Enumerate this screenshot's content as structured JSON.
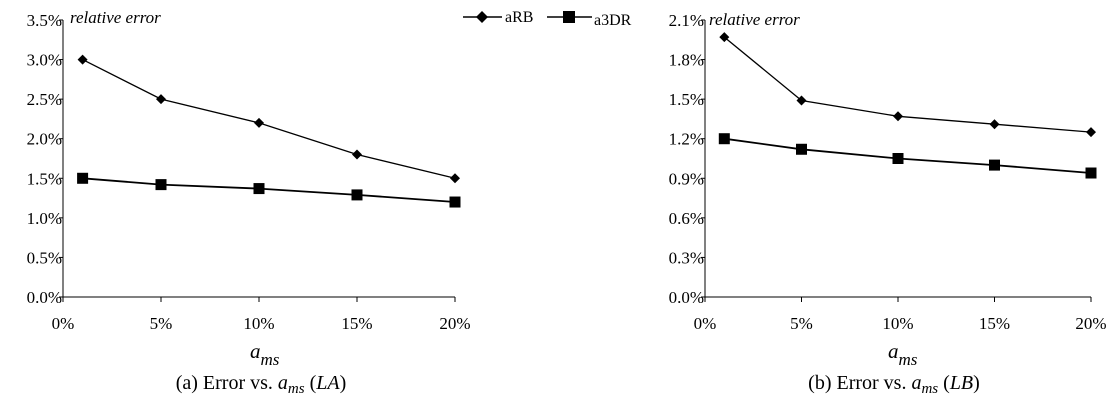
{
  "legend": [
    {
      "name": "aRB",
      "marker": "diamond"
    },
    {
      "name": "a3DR",
      "marker": "square"
    }
  ],
  "colors": {
    "line": "#000000",
    "background": "#ffffff"
  },
  "chart_data": [
    {
      "type": "line",
      "ylabel": "relative error",
      "xlabel": "a",
      "xlabel_sub": "ms",
      "caption": {
        "prefix": "(a) Error vs. ",
        "var": "a",
        "sub": "ms",
        "open": " (",
        "tag": "LA",
        "close": ")"
      },
      "x_ticks": [
        "0%",
        "5%",
        "10%",
        "15%",
        "20%"
      ],
      "y_ticks": [
        "0.0%",
        "0.5%",
        "1.0%",
        "1.5%",
        "2.0%",
        "2.5%",
        "3.0%",
        "3.5%"
      ],
      "xlim": [
        0,
        20
      ],
      "ylim": [
        0,
        3.5
      ],
      "x": [
        1,
        5,
        10,
        15,
        20
      ],
      "series": [
        {
          "name": "aRB",
          "marker": "diamond",
          "values": [
            3.0,
            2.5,
            2.2,
            1.8,
            1.5
          ]
        },
        {
          "name": "a3DR",
          "marker": "square",
          "values": [
            1.5,
            1.42,
            1.37,
            1.29,
            1.2
          ]
        }
      ]
    },
    {
      "type": "line",
      "ylabel": "relative error",
      "xlabel": "a",
      "xlabel_sub": "ms",
      "caption": {
        "prefix": "(b) Error vs. ",
        "var": "a",
        "sub": "ms",
        "open": " (",
        "tag": "LB",
        "close": ")"
      },
      "x_ticks": [
        "0%",
        "5%",
        "10%",
        "15%",
        "20%"
      ],
      "y_ticks": [
        "0.0%",
        "0.3%",
        "0.6%",
        "0.9%",
        "1.2%",
        "1.5%",
        "1.8%",
        "2.1%"
      ],
      "xlim": [
        0,
        20
      ],
      "ylim": [
        0,
        2.1
      ],
      "x": [
        1,
        5,
        10,
        15,
        20
      ],
      "series": [
        {
          "name": "aRB",
          "marker": "diamond",
          "values": [
            1.97,
            1.49,
            1.37,
            1.31,
            1.25
          ]
        },
        {
          "name": "a3DR",
          "marker": "square",
          "values": [
            1.2,
            1.12,
            1.05,
            1.0,
            0.94
          ]
        }
      ]
    }
  ]
}
